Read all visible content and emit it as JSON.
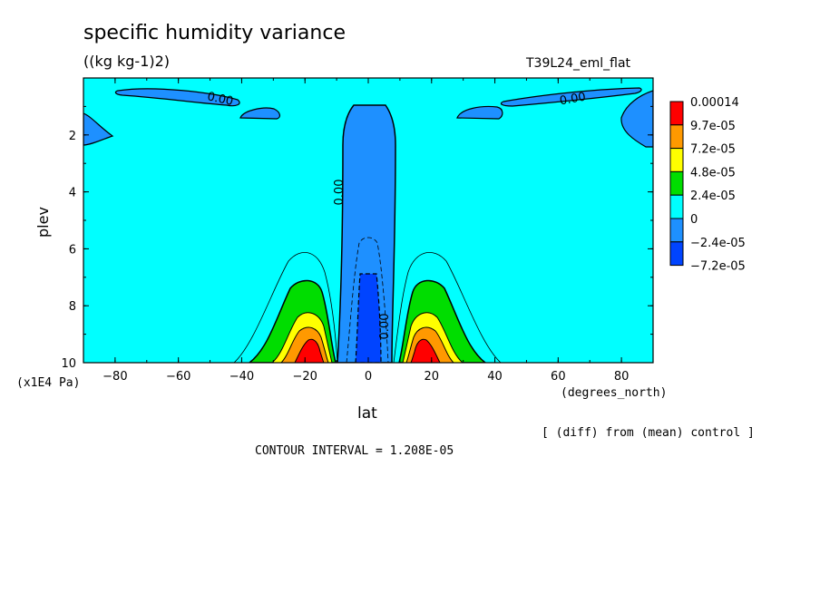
{
  "chart_data": {
    "type": "heatmap",
    "title": "specific humidity variance",
    "units": "((kg kg-1)2)",
    "run_label": "T39L24_eml_flat",
    "xlabel": "lat",
    "x_units": "(degrees_north)",
    "ylabel": "plev",
    "y_units": "(x1E4 Pa)",
    "xlim": [
      -90,
      90
    ],
    "ylim": [
      10,
      0
    ],
    "x_ticks": [
      -80,
      -60,
      -40,
      -20,
      0,
      20,
      40,
      60,
      80
    ],
    "y_ticks": [
      2,
      4,
      6,
      8,
      10
    ],
    "x_tick_labels": [
      "−80",
      "−60",
      "−40",
      "−20",
      "0",
      "20",
      "40",
      "60",
      "80"
    ],
    "y_tick_labels": [
      "2",
      "4",
      "6",
      "8",
      "10"
    ],
    "colorbar_labels": [
      "0.00014",
      "9.7e-05",
      "7.2e-05",
      "4.8e-05",
      "2.4e-05",
      "0",
      "−2.4e-05",
      "−7.2e-05"
    ],
    "colorbar_colors": [
      "#ff0000",
      "#ff9900",
      "#ffff00",
      "#00dd00",
      "#00ffff",
      "#1e90ff",
      "#0044ff"
    ],
    "contour_labels": [
      "0.00",
      "0.00",
      "0.00",
      "0.00"
    ],
    "contour_interval": "CONTOUR INTERVAL = 1.208E-05",
    "comparison_note": "[ (diff) from (mean) control ]",
    "grid": false
  },
  "colors": {
    "background_field": "#00ffff",
    "negative_light": "#1e90ff",
    "negative_dark": "#0044ff",
    "band_green": "#00dd00",
    "band_yellow": "#ffff00",
    "band_orange": "#ff9900",
    "band_red": "#ff0000"
  }
}
